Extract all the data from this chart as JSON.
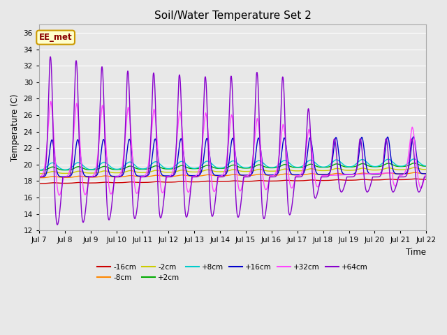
{
  "title": "Soil/Water Temperature Set 2",
  "xlabel": "Time",
  "ylabel": "Temperature (C)",
  "ylim": [
    12,
    37
  ],
  "yticks": [
    12,
    14,
    16,
    18,
    20,
    22,
    24,
    26,
    28,
    30,
    32,
    34,
    36
  ],
  "annotation_text": "EE_met",
  "annotation_box_color": "#ffffcc",
  "annotation_border_color": "#cc9900",
  "annotation_text_color": "#880000",
  "bg_color": "#e8e8e8",
  "series_colors": {
    "-16cm": "#cc0000",
    "-8cm": "#ff8800",
    "-2cm": "#cccc00",
    "+2cm": "#00aa00",
    "+8cm": "#00cccc",
    "+16cm": "#0000cc",
    "+32cm": "#ff44ff",
    "+64cm": "#8800cc"
  },
  "x_start": 7,
  "x_end": 22,
  "x_ticks": [
    7,
    8,
    9,
    10,
    11,
    12,
    13,
    14,
    15,
    16,
    17,
    18,
    19,
    20,
    21,
    22
  ],
  "x_tick_labels": [
    "Jul 7",
    "Jul 8",
    "Jul 9",
    "Jul 10",
    "Jul 11",
    "Jul 12",
    "Jul 13",
    "Jul 14",
    "Jul 15",
    "Jul 16",
    "Jul 17",
    "Jul 18",
    "Jul 19",
    "Jul 20",
    "Jul 21",
    "Jul 22"
  ]
}
